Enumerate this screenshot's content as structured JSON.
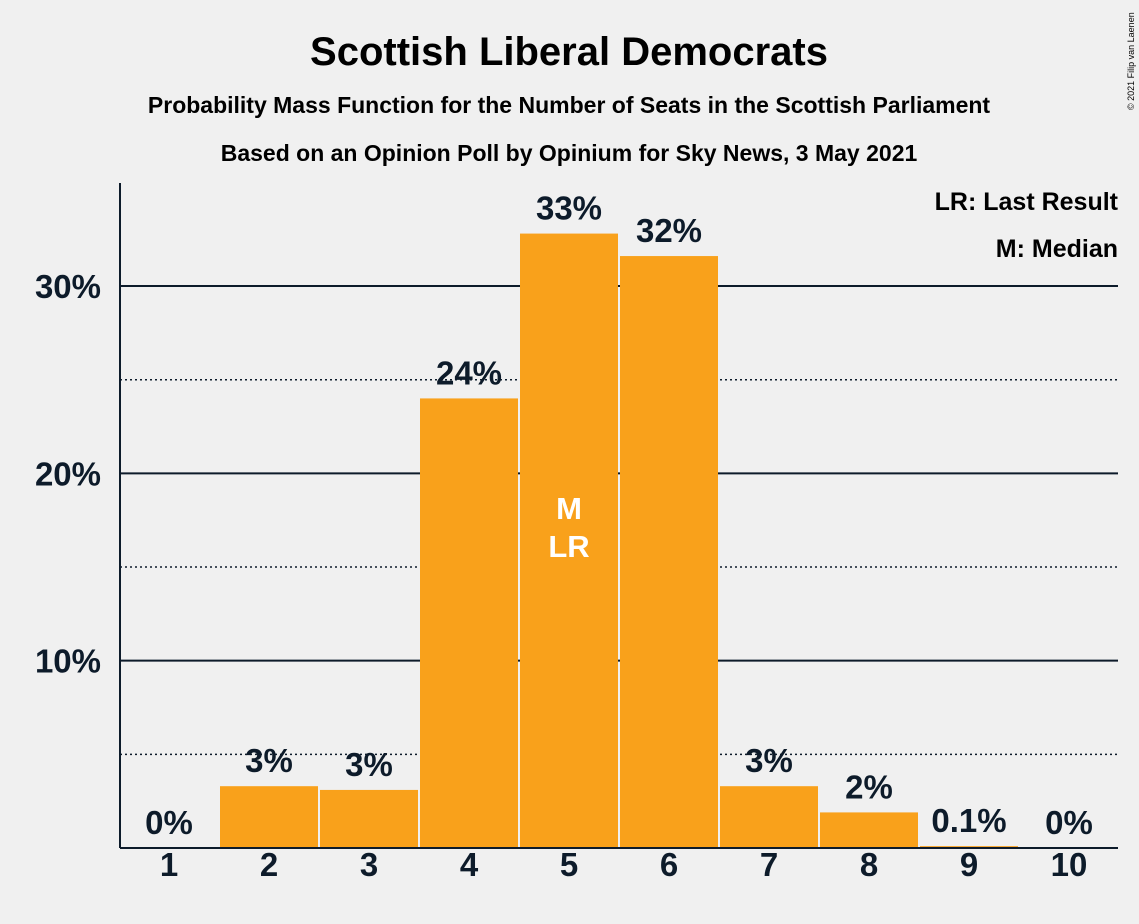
{
  "chart_data": {
    "type": "bar",
    "title": "Scottish Liberal Democrats",
    "subtitle": "Probability Mass Function for the Number of Seats in the Scottish Parliament",
    "subtitle2": "Based on an Opinion Poll by Opinium for Sky News, 3 May 2021",
    "categories": [
      "1",
      "2",
      "3",
      "4",
      "5",
      "6",
      "7",
      "8",
      "9",
      "10"
    ],
    "values": [
      0,
      3.3,
      3.1,
      24.0,
      32.8,
      31.6,
      3.3,
      1.9,
      0.1,
      0
    ],
    "value_labels": [
      "0%",
      "3%",
      "3%",
      "24%",
      "33%",
      "32%",
      "3%",
      "2%",
      "0.1%",
      "0%"
    ],
    "ylim": [
      0,
      35.5
    ],
    "yticks": [
      10,
      20,
      30
    ],
    "ytick_labels": [
      "10%",
      "20%",
      "30%"
    ],
    "minor_gridlines": [
      5,
      15,
      25
    ],
    "bar_color": "#f9a11b",
    "text_color": "#0d1b2a",
    "background": "#f0f0f0",
    "markers": [
      {
        "category": "5",
        "lines": [
          "M",
          "LR"
        ]
      }
    ],
    "legend": [
      "LR: Last Result",
      "M: Median"
    ],
    "legend_position": "top-right",
    "copyright": "© 2021 Filip van Laenen"
  }
}
